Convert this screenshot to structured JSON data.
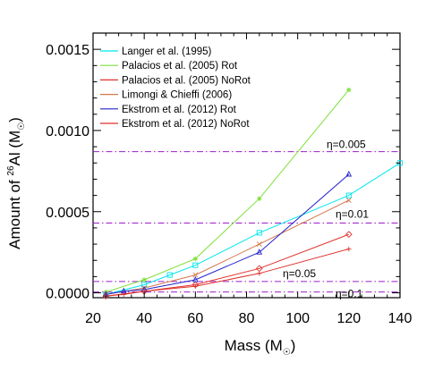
{
  "chart_data": {
    "type": "line",
    "xlabel": "Mass (M",
    "ylabel_prefix": "Amount of ",
    "ylabel_super": "26",
    "ylabel_suffix": "Al (M",
    "xlim": [
      20,
      140
    ],
    "ylim": [
      -3e-05,
      0.0016
    ],
    "x_ticks": [
      20,
      40,
      60,
      80,
      100,
      120,
      140
    ],
    "x_tick_labels": [
      "20",
      "40",
      "60",
      "80",
      "100",
      "120",
      "140"
    ],
    "y_ticks": [
      0.0,
      0.0005,
      0.001,
      0.0015
    ],
    "y_tick_labels": [
      "0.0000",
      "0.0005",
      "0.0010",
      "0.0015"
    ],
    "legend_position": "top-left",
    "series": [
      {
        "name": "Langer et al. (1995)",
        "color": "#00e5ee",
        "marker": "square",
        "x": [
          25,
          40,
          50,
          60,
          85,
          120,
          140
        ],
        "y": [
          -1e-05,
          5e-05,
          0.00011,
          0.00017,
          0.00037,
          0.0006,
          0.0008
        ]
      },
      {
        "name": "Palacios et al. (2005) Rot",
        "color": "#7ee03a",
        "marker": "star",
        "x": [
          25,
          40,
          60,
          85,
          120
        ],
        "y": [
          5e-06,
          8e-05,
          0.00021,
          0.00058,
          0.00125
        ]
      },
      {
        "name": "Palacios et al. (2005) NoRot",
        "color": "#e0302a",
        "marker": "diamond",
        "x": [
          25,
          40,
          60,
          85,
          120
        ],
        "y": [
          -2e-05,
          1e-05,
          5e-05,
          0.00015,
          0.00036
        ]
      },
      {
        "name": "Limongi & Chieffi (2006)",
        "color": "#d2784c",
        "marker": "x",
        "x": [
          25,
          40,
          60,
          85,
          120
        ],
        "y": [
          -1e-05,
          3e-05,
          0.00011,
          0.0003,
          0.00057
        ]
      },
      {
        "name": "Ekstrom et al. (2012) Rot",
        "color": "#2222cc",
        "marker": "triangle",
        "x": [
          25,
          32,
          40,
          60,
          85,
          120
        ],
        "y": [
          -1e-05,
          1e-05,
          2e-05,
          8e-05,
          0.00025,
          0.00073
        ]
      },
      {
        "name": "Ekstrom et al. (2012) NoRot",
        "color": "#e0302a",
        "marker": "plus",
        "x": [
          25,
          32,
          40,
          60,
          85,
          120
        ],
        "y": [
          -2e-05,
          -1e-05,
          1e-05,
          4e-05,
          0.00012,
          0.00027
        ]
      }
    ],
    "reference_lines": [
      {
        "label": "η=0.005",
        "y": 0.00087,
        "color": "#9a1ec8"
      },
      {
        "label": "η=0.01",
        "y": 0.00043,
        "color": "#9a1ec8"
      },
      {
        "label": "η=0.05",
        "y": 7e-05,
        "color": "#9a1ec8"
      },
      {
        "label": "η=0.1",
        "y": 5e-06,
        "color": "#9a1ec8"
      }
    ]
  }
}
